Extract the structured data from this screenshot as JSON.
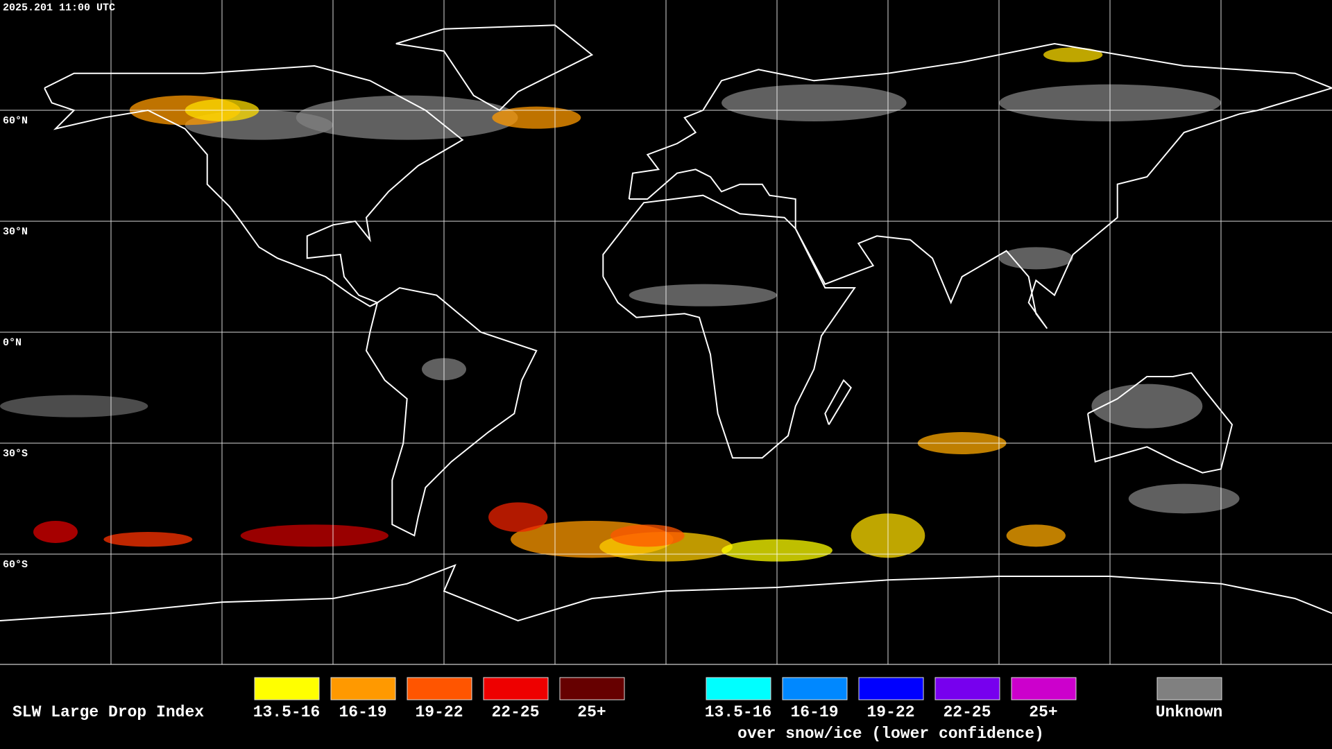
{
  "header": {
    "timestamp": "2025.201 11:00 UTC"
  },
  "grid_labels": [
    "60°N",
    "30°N",
    "0°N",
    "30°S",
    "60°S"
  ],
  "legend": {
    "title": "SLW Large Drop Index",
    "items": [
      {
        "label": "13.5-16",
        "color": "#ffff00"
      },
      {
        "label": "16-19",
        "color": "#ff9900"
      },
      {
        "label": "19-22",
        "color": "#ff5500"
      },
      {
        "label": "22-25",
        "color": "#ee0000"
      },
      {
        "label": "25+",
        "color": "#660000"
      }
    ],
    "snow_items": [
      {
        "label": "13.5-16",
        "color": "#00ffff"
      },
      {
        "label": "16-19",
        "color": "#0088ff"
      },
      {
        "label": "19-22",
        "color": "#0000ff"
      },
      {
        "label": "22-25",
        "color": "#7700ee"
      },
      {
        "label": "25+",
        "color": "#cc00cc"
      }
    ],
    "snow_caption": "over snow/ice (lower confidence)",
    "unknown": {
      "label": "Unknown",
      "color": "#808080"
    }
  }
}
